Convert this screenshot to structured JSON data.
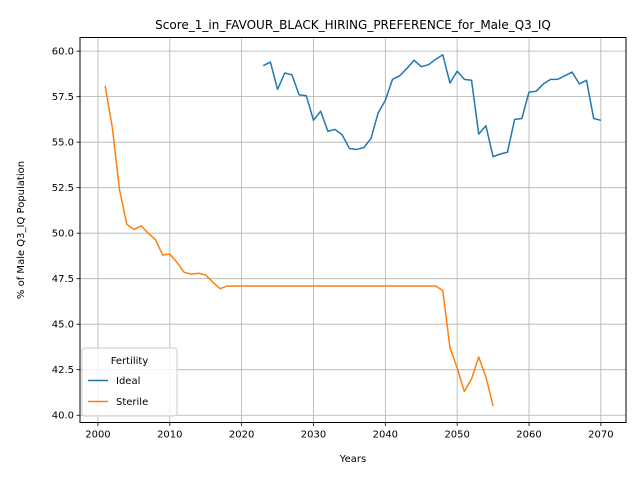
{
  "chart_data": {
    "type": "line",
    "title": "Score_1_in_FAVOUR_BLACK_HIRING_PREFERENCE_for_Male_Q3_IQ",
    "xlabel": "Years",
    "ylabel": "% of Male Q3_IQ Population",
    "xlim": [
      1997.5,
      2073.5
    ],
    "ylim": [
      39.6,
      60.75
    ],
    "xticks": [
      2000,
      2010,
      2020,
      2030,
      2040,
      2050,
      2060,
      2070
    ],
    "yticks": [
      40.0,
      42.5,
      45.0,
      47.5,
      50.0,
      52.5,
      55.0,
      57.5,
      60.0
    ],
    "xtick_labels": [
      "2000",
      "2010",
      "2020",
      "2030",
      "2040",
      "2050",
      "2060",
      "2070"
    ],
    "ytick_labels": [
      "40.0",
      "42.5",
      "45.0",
      "47.5",
      "50.0",
      "52.5",
      "55.0",
      "57.5",
      "60.0"
    ],
    "grid": true,
    "legend": {
      "title": "Fertility",
      "placement": "lower-left"
    },
    "series": [
      {
        "name": "Ideal",
        "color": "#1f77b4",
        "x": [
          2023,
          2024,
          2025,
          2026,
          2027,
          2028,
          2029,
          2030,
          2031,
          2032,
          2033,
          2034,
          2035,
          2036,
          2037,
          2038,
          2039,
          2040,
          2041,
          2042,
          2043,
          2044,
          2045,
          2046,
          2047,
          2048,
          2049,
          2050,
          2051,
          2052,
          2053,
          2054,
          2055,
          2056,
          2057,
          2058,
          2059,
          2060,
          2061,
          2062,
          2063,
          2064,
          2065,
          2066,
          2067,
          2068,
          2069,
          2070
        ],
        "y": [
          59.2,
          59.4,
          57.9,
          58.8,
          58.7,
          57.6,
          57.55,
          56.2,
          56.7,
          55.6,
          55.7,
          55.4,
          54.65,
          54.6,
          54.7,
          55.2,
          56.6,
          57.3,
          58.45,
          58.65,
          59.05,
          59.5,
          59.15,
          59.25,
          59.55,
          59.8,
          58.25,
          58.9,
          58.45,
          58.4,
          55.45,
          55.9,
          54.2,
          54.35,
          54.45,
          56.25,
          56.3,
          57.75,
          57.8,
          58.2,
          58.45,
          58.45,
          58.65,
          58.85,
          58.2,
          58.4,
          56.3,
          56.2
        ]
      },
      {
        "name": "Sterile",
        "color": "#ff7f0e",
        "x": [
          2001,
          2002,
          2003,
          2004,
          2005,
          2006,
          2007,
          2008,
          2009,
          2010,
          2011,
          2012,
          2013,
          2014,
          2015,
          2016,
          2017,
          2018,
          2019,
          2020,
          2021,
          2022,
          2023,
          2024,
          2025,
          2026,
          2027,
          2028,
          2029,
          2030,
          2031,
          2032,
          2033,
          2034,
          2035,
          2036,
          2037,
          2038,
          2039,
          2040,
          2041,
          2042,
          2043,
          2044,
          2045,
          2046,
          2047,
          2048,
          2049,
          2050,
          2051,
          2052,
          2053,
          2054,
          2055
        ],
        "y": [
          58.1,
          55.8,
          52.4,
          50.5,
          50.2,
          50.4,
          50.0,
          49.65,
          48.8,
          48.85,
          48.4,
          47.85,
          47.75,
          47.8,
          47.7,
          47.3,
          46.95,
          47.1,
          47.1,
          47.1,
          47.1,
          47.1,
          47.1,
          47.1,
          47.1,
          47.1,
          47.1,
          47.1,
          47.1,
          47.1,
          47.1,
          47.1,
          47.1,
          47.1,
          47.1,
          47.1,
          47.1,
          47.1,
          47.1,
          47.1,
          47.1,
          47.1,
          47.1,
          47.1,
          47.1,
          47.1,
          47.1,
          46.85,
          43.7,
          42.6,
          41.3,
          42.0,
          43.2,
          42.1,
          40.5
        ]
      }
    ]
  }
}
